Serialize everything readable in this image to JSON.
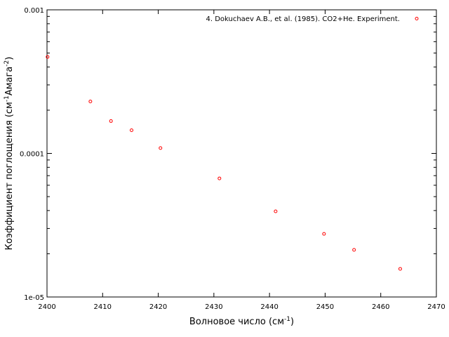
{
  "chart_data": {
    "type": "scatter",
    "xlabel": "Волновое число (см",
    "xlabel_sup": "-1",
    "xlabel_end": ")",
    "ylabel": "Коэффициент поглощения (см",
    "ylabel_sup1": "-1",
    "ylabel_mid": "Амага",
    "ylabel_sup2": "-2",
    "ylabel_end": ")",
    "xlim": [
      2400,
      2470
    ],
    "ylim": [
      1e-05,
      0.001
    ],
    "yscale": "log",
    "x_ticks": [
      2400,
      2410,
      2420,
      2430,
      2440,
      2450,
      2460,
      2470
    ],
    "y_ticks": [
      {
        "value": 1e-05,
        "label": "1e-05"
      },
      {
        "value": 0.0001,
        "label": "0.0001"
      },
      {
        "value": 0.001,
        "label": "0.001"
      }
    ],
    "legend_position": "top-right",
    "series": [
      {
        "name": "4. Dokuchaev A.B., et al. (1985). CO2+He. Experiment.",
        "color": "#ff0000",
        "marker": "open-circle",
        "x": [
          2400.1,
          2407.8,
          2411.5,
          2415.2,
          2420.4,
          2431.0,
          2441.1,
          2449.8,
          2455.2,
          2463.5
        ],
        "y": [
          0.00047,
          0.00023,
          0.000168,
          0.000145,
          0.000109,
          6.7e-05,
          3.95e-05,
          2.75e-05,
          2.13e-05,
          1.57e-05
        ]
      }
    ]
  }
}
